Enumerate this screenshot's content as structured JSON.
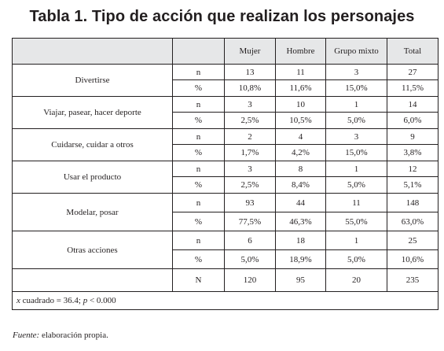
{
  "title": "Tabla 1. Tipo de acción que realizan los personajes",
  "header": {
    "cols": [
      "Mujer",
      "Hombre",
      "Grupo mixto",
      "Total"
    ]
  },
  "rows": [
    {
      "category": "Divertirse",
      "n": {
        "label": "n",
        "values": [
          "13",
          "11",
          "3",
          "27"
        ]
      },
      "pct": {
        "label": "%",
        "values": [
          "10,8%",
          "11,6%",
          "15,0%",
          "11,5%"
        ]
      }
    },
    {
      "category": "Viajar, pasear, hacer deporte",
      "n": {
        "label": "n",
        "values": [
          "3",
          "10",
          "1",
          "14"
        ]
      },
      "pct": {
        "label": "%",
        "values": [
          "2,5%",
          "10,5%",
          "5,0%",
          "6,0%"
        ]
      }
    },
    {
      "category": "Cuidarse, cuidar a otros",
      "n": {
        "label": "n",
        "values": [
          "2",
          "4",
          "3",
          "9"
        ]
      },
      "pct": {
        "label": "%",
        "values": [
          "1,7%",
          "4,2%",
          "15,0%",
          "3,8%"
        ]
      }
    },
    {
      "category": "Usar el producto",
      "n": {
        "label": "n",
        "values": [
          "3",
          "8",
          "1",
          "12"
        ]
      },
      "pct": {
        "label": "%",
        "values": [
          "2,5%",
          "8,4%",
          "5,0%",
          "5,1%"
        ]
      }
    },
    {
      "category": "Modelar, posar",
      "n": {
        "label": "n",
        "values": [
          "93",
          "44",
          "11",
          "148"
        ]
      },
      "pct": {
        "label": "%",
        "values": [
          "77,5%",
          "46,3%",
          "55,0%",
          "63,0%"
        ]
      }
    },
    {
      "category": "Otras acciones",
      "n": {
        "label": "n",
        "values": [
          "6",
          "18",
          "1",
          "25"
        ]
      },
      "pct": {
        "label": "%",
        "values": [
          "5,0%",
          "18,9%",
          "5,0%",
          "10,6%"
        ]
      }
    }
  ],
  "totals": {
    "label": "N",
    "values": [
      "120",
      "95",
      "20",
      "235"
    ]
  },
  "stat_note": {
    "symbol": "x",
    "text": " cuadrado = 36.4; ",
    "p": "p",
    "rest": " < 0.000"
  },
  "footnote": {
    "label": "Fuente:",
    "text": " elaboración propia."
  }
}
